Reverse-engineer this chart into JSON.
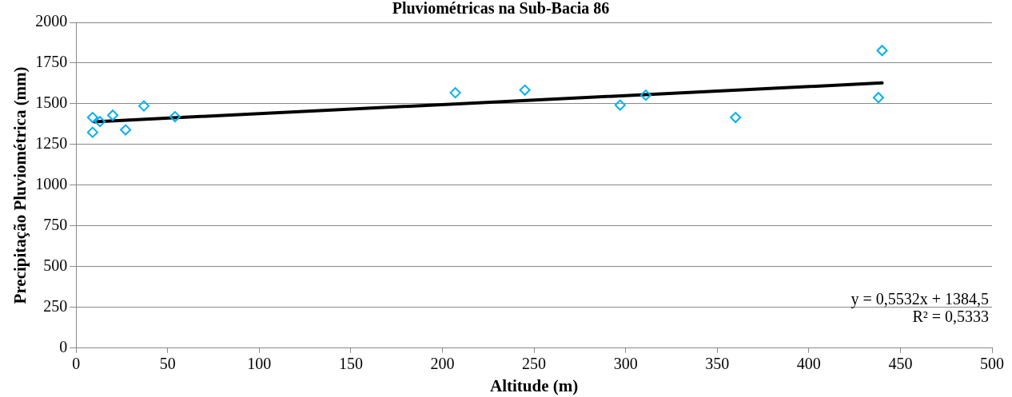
{
  "chart_data": {
    "type": "scatter",
    "title": "Pluviométricas na Sub-Bacia 86",
    "xlabel": "Altitude (m)",
    "ylabel": "Precipitação Pluviométrica (mm)",
    "xlim": [
      0,
      500
    ],
    "xticks": [
      0,
      50,
      100,
      150,
      200,
      250,
      300,
      350,
      400,
      450,
      500
    ],
    "ylim": [
      0,
      2000
    ],
    "yticks": [
      0,
      250,
      500,
      750,
      1000,
      1250,
      1500,
      1750,
      2000
    ],
    "grid": "y",
    "legend": false,
    "marker": "diamond",
    "series": [
      {
        "type": "scatter",
        "color": "#00b0f0",
        "x": [
          9,
          9,
          13,
          20,
          27,
          37,
          54,
          207,
          245,
          297,
          311,
          360,
          438,
          440
        ],
        "values": [
          1416,
          1325,
          1391,
          1430,
          1340,
          1487,
          1421,
          1568,
          1584,
          1492,
          1553,
          1416,
          1538,
          1827
        ]
      },
      {
        "type": "line",
        "color": "#000000",
        "marker": "none",
        "x": [
          10,
          440
        ],
        "values": [
          1390,
          1628
        ]
      }
    ],
    "annotations": [
      "y = 0,5532x + 1384,5",
      "R² = 0,5333"
    ]
  }
}
